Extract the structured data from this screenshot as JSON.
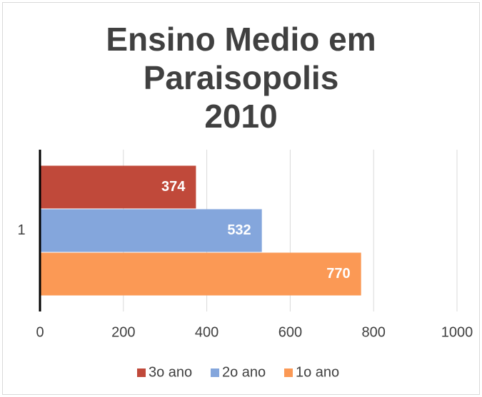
{
  "chart_data": {
    "type": "hbar",
    "title": "Ensino Medio em\nParaisopolis\n2010",
    "categories": [
      "1"
    ],
    "series": [
      {
        "name": "3o ano",
        "color": "#c0493a",
        "values": [
          374
        ]
      },
      {
        "name": "2o ano",
        "color": "#84a6dc",
        "values": [
          532
        ]
      },
      {
        "name": "1o ano",
        "color": "#fb9955",
        "values": [
          770
        ]
      }
    ],
    "xlim": [
      0,
      1000
    ],
    "xticks": [
      0,
      200,
      400,
      600,
      800,
      1000
    ],
    "grid": true,
    "legend": "bottom"
  }
}
